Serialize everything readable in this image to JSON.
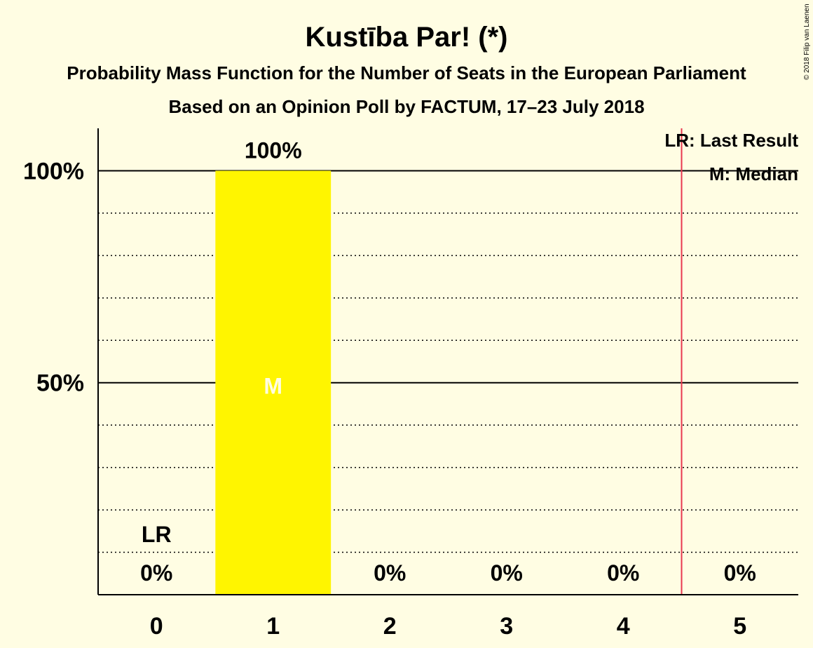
{
  "chart_data": {
    "type": "bar",
    "title": "Kustība Par! (*)",
    "subtitle": "Probability Mass Function for the Number of Seats in the European Parliament",
    "subtitle2": "Based on an Opinion Poll by FACTUM, 17–23 July 2018",
    "copyright": "© 2018 Filip van Laenen",
    "categories": [
      "0",
      "1",
      "2",
      "3",
      "4",
      "5"
    ],
    "values": [
      0,
      100,
      0,
      0,
      0,
      0
    ],
    "value_labels": [
      "0%",
      "100%",
      "0%",
      "0%",
      "0%",
      "0%"
    ],
    "ylim": [
      0,
      110
    ],
    "y_ticks": [
      {
        "value": 50,
        "label": "50%"
      },
      {
        "value": 100,
        "label": "100%"
      }
    ],
    "minor_gridlines": [
      10,
      20,
      30,
      40,
      60,
      70,
      80,
      90
    ],
    "last_result": {
      "seats": 4.5,
      "label": "LR",
      "label_at_category": 0
    },
    "median": {
      "category": "1",
      "label": "M"
    },
    "legend": {
      "position": "top-right",
      "items": [
        "LR: Last Result",
        "M: Median"
      ]
    },
    "colors": {
      "background": "#FFFDE3",
      "bar": "#FFF500",
      "last_result_line": "#E8384F",
      "median_text": "#FFFDE3"
    }
  }
}
